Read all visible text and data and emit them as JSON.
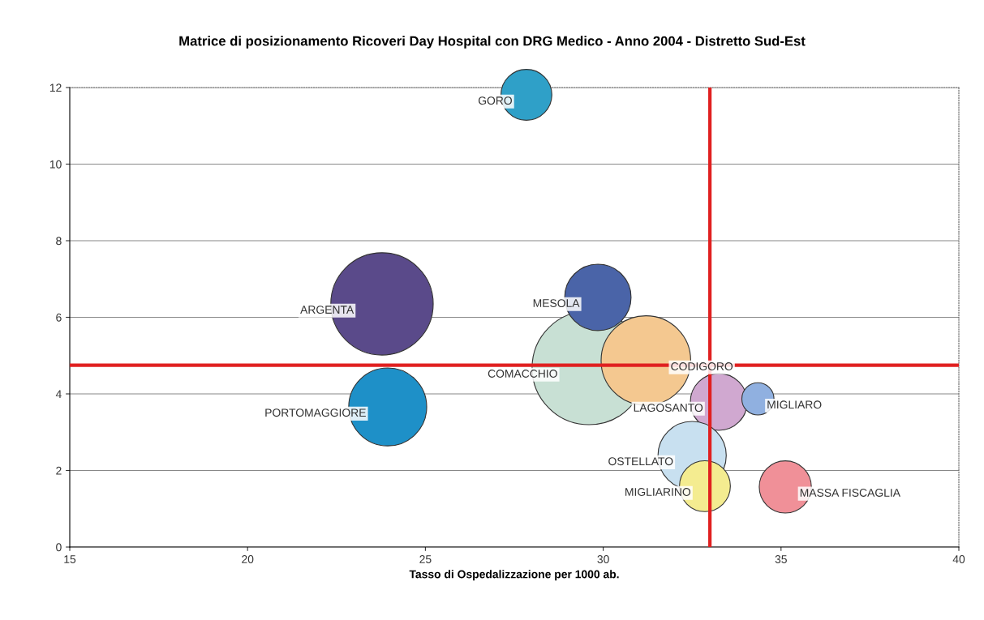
{
  "chart_data": {
    "type": "bubble",
    "title": "Matrice di posizionamento Ricoveri Day Hospital con DRG Medico - Anno 2004 - Distretto Sud-Est",
    "xlabel": "Tasso di Ospedalizzazione per 1000 ab.",
    "x": [
      27.84,
      23.78,
      23.94,
      29.6,
      29.85,
      31.2,
      33.25,
      34.35,
      32.5,
      32.86,
      35.12
    ],
    "values": [
      11.81,
      6.35,
      3.66,
      4.68,
      6.52,
      4.87,
      3.79,
      3.87,
      2.39,
      1.59,
      1.57
    ],
    "sizes": [
      0.2,
      0.81,
      0.47,
      1,
      0.34,
      0.62,
      0.25,
      0.08,
      0.36,
      0.2,
      0.21
    ],
    "colors": [
      "#2fa0c8",
      "#5a4a8a",
      "#1e90c8",
      "#c8e0d4",
      "#4a64a8",
      "#f4c890",
      "#d0a8d0",
      "#90b0e0",
      "#c8e0f0",
      "#f4ec90",
      "#f09098"
    ],
    "annotations": [
      {
        "text": "GORO",
        "x": 27.84,
        "y": 11.81
      },
      {
        "text": "ARGENTA",
        "x": 23.78,
        "y": 6.35
      },
      {
        "text": "PORTOMAGGIORE",
        "x": 23.94,
        "y": 3.66
      },
      {
        "text": "COMACCHIO",
        "x": 29.6,
        "y": 4.68
      },
      {
        "text": "MESOLA",
        "x": 29.85,
        "y": 6.52
      },
      {
        "text": "CODIGORO",
        "x": 31.2,
        "y": 4.87
      },
      {
        "text": "LAGOSANTO",
        "x": 33.25,
        "y": 3.79
      },
      {
        "text": "MIGLIARO",
        "x": 34.35,
        "y": 3.87
      },
      {
        "text": "OSTELLATO",
        "x": 32.5,
        "y": 2.39
      },
      {
        "text": "MIGLIARINO",
        "x": 32.86,
        "y": 1.59
      },
      {
        "text": "MASSA FISCAGLIA",
        "x": 35.12,
        "y": 1.57
      }
    ],
    "xlim": [
      15,
      40
    ],
    "ylim": [
      0,
      12
    ],
    "xticks": [
      15,
      20,
      25,
      30,
      35,
      40
    ],
    "yticks": [
      0,
      2,
      4,
      6,
      8,
      10,
      12
    ],
    "ref_lines": [
      {
        "axis": "x",
        "value": 33,
        "color": "#e02020"
      },
      {
        "axis": "y",
        "value": 4.75,
        "color": "#e02020"
      }
    ],
    "grid": "y",
    "legend": false
  }
}
